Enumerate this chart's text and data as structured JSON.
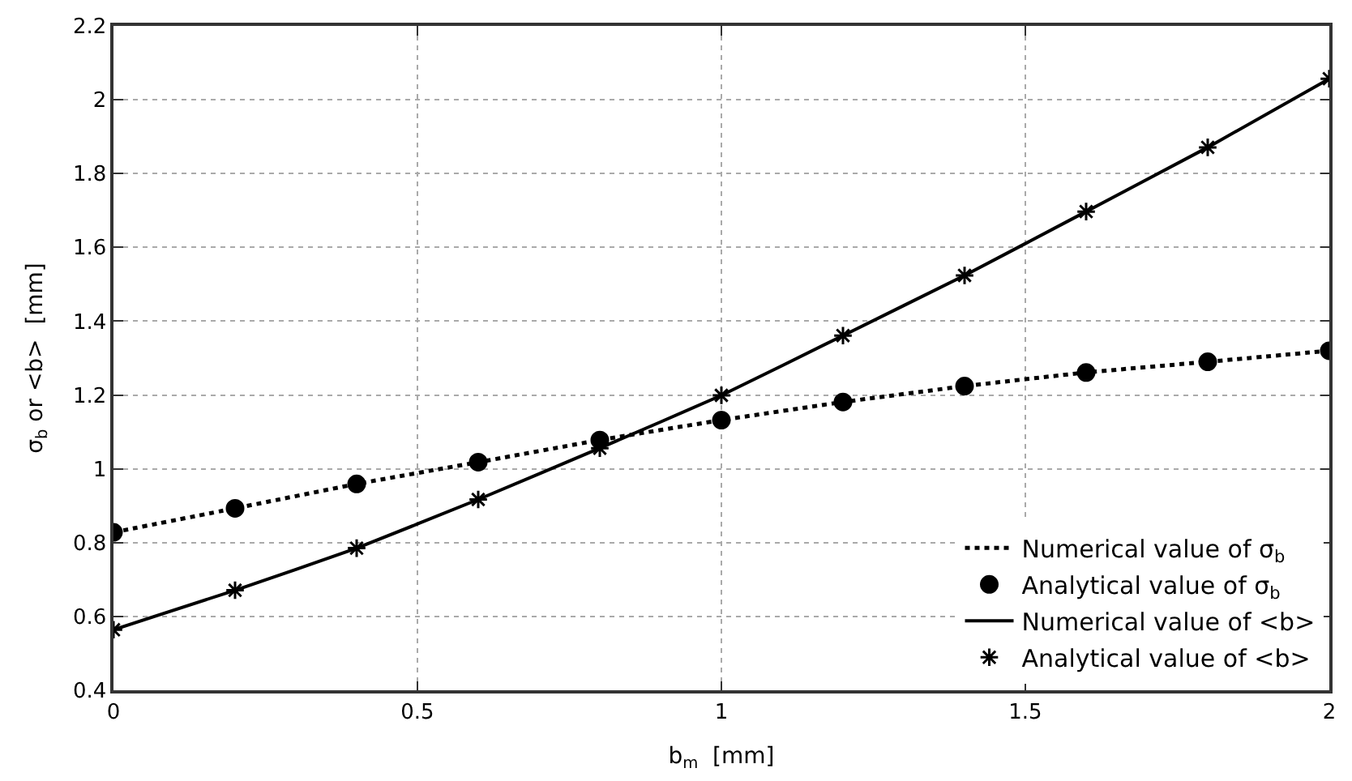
{
  "chart_data": {
    "type": "line",
    "xlabel": "b$_{m}$  [mm]",
    "ylabel": "σ$_{b}$ or <b>  [mm]",
    "xlim": [
      0,
      2
    ],
    "xticks": [
      0,
      0.5,
      1,
      1.5,
      2
    ],
    "ylim": [
      0.4,
      2.2
    ],
    "yticks": [
      0.4,
      0.6,
      0.8,
      1,
      1.2,
      1.4,
      1.6,
      1.8,
      2,
      2.2
    ],
    "grid": true,
    "legend": "bottom right",
    "x": [
      0,
      0.2,
      0.4,
      0.6,
      0.8,
      1.0,
      1.2,
      1.4,
      1.6,
      1.8,
      2.0
    ],
    "series": [
      {
        "name": "Numerical value of σ$_{b}$",
        "color": "#000000",
        "line_style": "dotted",
        "marker": "none",
        "values": [
          0.828,
          0.893,
          0.959,
          1.018,
          1.078,
          1.132,
          1.181,
          1.224,
          1.261,
          1.29,
          1.32
        ]
      },
      {
        "name": "Analytical value of σ$_{b}$",
        "type": "scatter",
        "color": "#000000",
        "marker": "circle",
        "values": [
          0.828,
          0.893,
          0.959,
          1.018,
          1.078,
          1.132,
          1.181,
          1.224,
          1.261,
          1.29,
          1.32
        ]
      },
      {
        "name": "Numerical value of <b>",
        "color": "#000000",
        "line_style": "solid",
        "marker": "none",
        "values": [
          0.564,
          0.671,
          0.785,
          0.917,
          1.056,
          1.199,
          1.361,
          1.524,
          1.697,
          1.871,
          2.057
        ]
      },
      {
        "name": "Analytical value of <b>",
        "type": "scatter",
        "color": "#000000",
        "marker": "cross",
        "values": [
          0.564,
          0.671,
          0.785,
          0.917,
          1.056,
          1.199,
          1.361,
          1.524,
          1.697,
          1.871,
          2.057
        ]
      }
    ]
  }
}
